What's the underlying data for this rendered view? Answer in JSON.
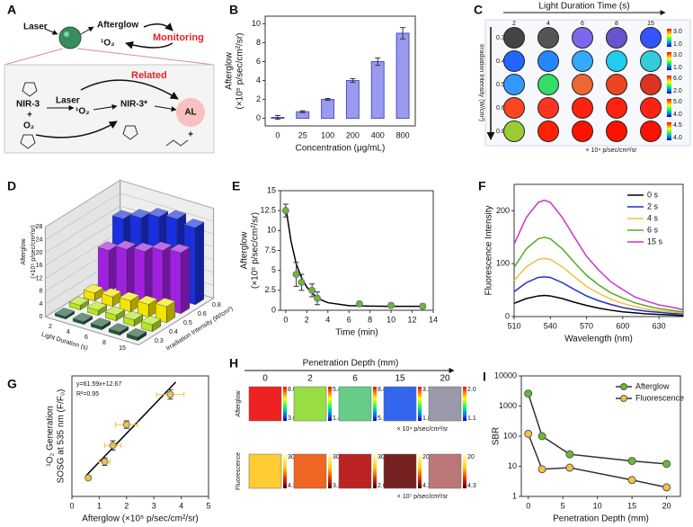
{
  "panel_a": {
    "panel": "A",
    "laser_top": "Laser",
    "afterglow": "Afterglow",
    "singlet_top": "¹O₂",
    "monitoring": "Monitoring",
    "related": "Related",
    "nir3": "NIR-3",
    "plus_left": "+",
    "o2": "O₂",
    "laser_bottom": "Laser",
    "singlet_bottom": "¹O₂",
    "nir3_star": "NIR-3*",
    "al": "AL",
    "plus_right": "+"
  },
  "panel_c": {
    "panel": "C",
    "title": "Light Duration Time (s)",
    "columns": [
      "2",
      "4",
      "6",
      "8",
      "15"
    ],
    "row_title": "Irradiation Intensity (W/cm²)",
    "rows": [
      "0.3",
      "0.4",
      "0.5",
      "0.6",
      "0.8"
    ],
    "colors": [
      [
        "#444444",
        "#555555",
        "#7b68ee",
        "#6655cc",
        "#3355ff"
      ],
      [
        "#2266ff",
        "#2288ff",
        "#33aaff",
        "#22ccee",
        "#33ccdd"
      ],
      [
        "#3399ff",
        "#33dd66",
        "#ee6633",
        "#ee4422",
        "#dd3322"
      ],
      [
        "#ff4422",
        "#ff3322",
        "#ff2211",
        "#ff2211",
        "#ff2211"
      ],
      [
        "#99cc33",
        "#ff2200",
        "#ff1100",
        "#ff1100",
        "#ff1100"
      ]
    ],
    "scale_labels": [
      [
        "3.0",
        "1.0"
      ],
      [
        "3.0",
        "1.0"
      ],
      [
        "6.0",
        "2.0"
      ],
      [
        "5.0",
        "4.0"
      ],
      [
        "4.5",
        "4.0"
      ]
    ],
    "unit": "× 10⁴ p/sec/cm²/sr"
  },
  "panel_h": {
    "panel": "H",
    "title": "Penetration Depth (mm)",
    "columns": [
      "0",
      "2",
      "6",
      "15",
      "20"
    ],
    "rows": [
      {
        "name": "Afterglow",
        "colors": [
          "#ee2222",
          "#99dd44",
          "#66cc88",
          "#3366ee",
          "#9999aa"
        ],
        "scale_labels": [
          [
            "8.0",
            "3.0"
          ],
          [
            "5.4",
            "1.4"
          ],
          [
            "8.4",
            "5.1"
          ],
          [
            "3.2",
            "1.8"
          ],
          [
            "2.0",
            "1.1"
          ]
        ],
        "unit": "× 10⁴ p/sec/cm²/sr"
      },
      {
        "name": "Fluorescence",
        "colors": [
          "#ffcc33",
          "#ee6622",
          "#bb2222",
          "#772222",
          "#bb7777"
        ],
        "scale_labels": [
          [
            "30",
            "4.3"
          ],
          [
            "30",
            "3.2"
          ],
          [
            "30",
            "2.0"
          ],
          [
            "20",
            "4.3"
          ],
          [
            "20",
            "4.3"
          ]
        ],
        "unit": "× 10⁷ p/sec/cm²/sr"
      }
    ]
  },
  "chart_data": [
    {
      "panel": "B",
      "type": "bar",
      "ylabel": [
        "Afterglow",
        "(×10⁵ p/sec/cm²/sr)"
      ],
      "xlabel": "Concentration (μg/mL)",
      "categories": [
        "0",
        "25",
        "100",
        "200",
        "400",
        "800"
      ],
      "values": [
        0.1,
        0.7,
        2.0,
        4.0,
        6.0,
        9.0
      ],
      "errors": [
        0.2,
        0.1,
        0.1,
        0.2,
        0.4,
        0.6
      ],
      "color": "#9a9af0",
      "ylim": [
        -0.8,
        10.8
      ],
      "yticks": [
        0,
        2,
        4,
        6,
        8,
        10
      ]
    },
    {
      "panel": "D",
      "type": "bar3d",
      "xlabel": "Light Duration (s)",
      "ylabel": "Irradiation Intensity (W/cm²)",
      "zlabel": [
        "Afterglow",
        "(×10⁵ p/sec/cm²/sr)"
      ],
      "categories": [
        "2",
        "4",
        "6",
        "8",
        "15"
      ],
      "series": [
        {
          "name": "0.3",
          "color": "#1f5a36",
          "values": [
            0.8,
            0.9,
            1.0,
            1.0,
            1.1
          ]
        },
        {
          "name": "0.4",
          "color": "#b5e61d",
          "values": [
            1.5,
            1.6,
            1.8,
            2.0,
            2.2
          ]
        },
        {
          "name": "0.5",
          "color": "#f2e600",
          "values": [
            2.5,
            3.0,
            3.5,
            4.0,
            5.0
          ]
        },
        {
          "name": "0.6",
          "color": "#a020e0",
          "values": [
            13,
            15,
            16,
            18,
            19
          ]
        },
        {
          "name": "0.8",
          "color": "#1a2fe0",
          "values": [
            20,
            22,
            24,
            25,
            24
          ]
        }
      ],
      "zlim": [
        0,
        28
      ],
      "zticks": [
        0,
        4,
        8,
        12,
        16,
        20,
        24,
        28
      ]
    },
    {
      "panel": "E",
      "type": "scatter",
      "ylabel": [
        "Afterglow",
        "(×10⁵ p/sec/cm²/sr)"
      ],
      "xlabel": "Time (min)",
      "x": [
        0,
        1,
        1.5,
        2.5,
        3,
        7,
        10,
        13
      ],
      "values": [
        12.5,
        4.5,
        3.5,
        2.5,
        1.5,
        0.8,
        0.6,
        0.5
      ],
      "errors": [
        0.8,
        1.5,
        1.0,
        0.8,
        0.8,
        0.3,
        0.3,
        0.3
      ],
      "color": "#66bb33",
      "fit": {
        "x": [
          0,
          0.5,
          1,
          1.5,
          2,
          3,
          4,
          6,
          8,
          10,
          13
        ],
        "values": [
          13,
          8.7,
          5.8,
          4.1,
          2.9,
          1.5,
          0.95,
          0.58,
          0.52,
          0.5,
          0.5
        ],
        "color": "#000000"
      },
      "xlim": [
        -0.5,
        14
      ],
      "xticks": [
        0,
        2,
        4,
        6,
        8,
        10,
        12,
        14
      ],
      "ylim": [
        0,
        15
      ],
      "yticks": [
        0,
        2.5,
        5,
        7.5,
        10,
        12.5,
        15
      ]
    },
    {
      "panel": "F",
      "type": "line",
      "ylabel": "Fluorescence Intensity",
      "xlabel": "Wavelength (nm)",
      "x": [
        510,
        520,
        530,
        535,
        540,
        550,
        560,
        570,
        580,
        590,
        600,
        610,
        620,
        630,
        640,
        650
      ],
      "series": [
        {
          "name": "0 s",
          "color": "#000000",
          "values": [
            25,
            34,
            39,
            40,
            39,
            34,
            27,
            21,
            16,
            12,
            9,
            7,
            5,
            4,
            3,
            2
          ]
        },
        {
          "name": "2 s",
          "color": "#1f2fcc",
          "values": [
            47,
            64,
            74,
            75,
            74,
            64,
            51,
            39,
            30,
            23,
            17,
            13,
            10,
            8,
            6,
            5
          ]
        },
        {
          "name": "4 s",
          "color": "#f0c040",
          "values": [
            68,
            94,
            108,
            110,
            108,
            94,
            75,
            57,
            44,
            33,
            25,
            19,
            14,
            11,
            9,
            7
          ]
        },
        {
          "name": "6 s",
          "color": "#55aa22",
          "values": [
            93,
            128,
            147,
            150,
            147,
            128,
            102,
            78,
            60,
            45,
            35,
            26,
            20,
            15,
            12,
            9
          ]
        },
        {
          "name": "15 s",
          "color": "#cc33cc",
          "values": [
            137,
            187,
            216,
            220,
            216,
            187,
            150,
            114,
            88,
            66,
            51,
            37,
            29,
            22,
            18,
            13
          ]
        }
      ],
      "xlim": [
        510,
        650
      ],
      "xticks": [
        510,
        540,
        570,
        600,
        630
      ],
      "ylim": [
        0,
        250
      ],
      "yticks": [
        0,
        100,
        200
      ],
      "legend": "upper right"
    },
    {
      "panel": "G",
      "type": "scatter",
      "ylabel": [
        "¹O₂ Generation",
        "SOSG at 535 nm (F/F₀)"
      ],
      "xlabel": "Afterglow (×10⁵ p/sec/cm²/sr)",
      "x": [
        0.6,
        1.2,
        1.5,
        2.0,
        3.6
      ],
      "values": [
        40,
        75,
        110,
        155,
        220
      ],
      "xerrors": [
        0.1,
        0.2,
        0.3,
        0.4,
        0.5
      ],
      "errors": [
        5,
        8,
        10,
        8,
        10
      ],
      "color": "#f5c242",
      "fit": {
        "x": [
          0.5,
          3.8
        ],
        "values": [
          43.5,
          246.7
        ],
        "color": "#000000"
      },
      "annotation": [
        "y=61.59x+12.67",
        "R²=0.95"
      ],
      "xlim": [
        0,
        5
      ],
      "xticks": [
        0,
        1,
        2,
        3,
        4,
        5
      ],
      "ylim": [
        0,
        260
      ]
    },
    {
      "panel": "I",
      "type": "line",
      "log": true,
      "markers": true,
      "line_color": "#333333",
      "ylabel": "SBR",
      "xlabel": "Penetration Depth (mm)",
      "x": [
        0,
        2,
        6,
        15,
        20
      ],
      "series": [
        {
          "name": "Afterglow",
          "color": "#66bb33",
          "values": [
            2600,
            100,
            25,
            15,
            12
          ]
        },
        {
          "name": "Fluorescence",
          "color": "#f5c242",
          "values": [
            120,
            8,
            9,
            3.5,
            2
          ]
        }
      ],
      "xlim": [
        -1,
        22
      ],
      "xticks": [
        0,
        5,
        10,
        15,
        20
      ],
      "ylim": [
        1,
        10000
      ],
      "yticks": [
        1,
        10,
        100,
        1000,
        10000
      ],
      "legend": "upper right"
    }
  ]
}
